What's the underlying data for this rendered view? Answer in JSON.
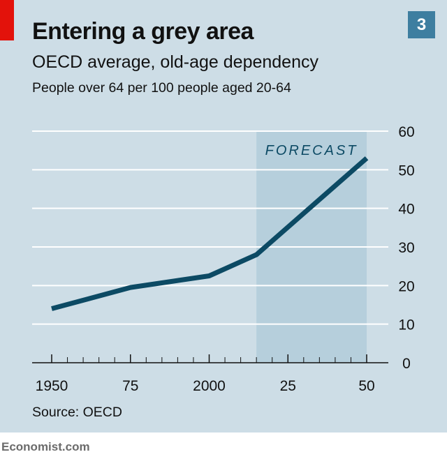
{
  "header": {
    "title": "Entering a grey area",
    "subtitle": "OECD average, old-age dependency",
    "unit": "People over 64 per 100 people aged 20-64",
    "chart_number": "3"
  },
  "footer": {
    "source": "Source: OECD",
    "brand": "Economist.com"
  },
  "colors": {
    "background": "#cddde6",
    "line": "#0c4a64",
    "forecast_band": "#b6cfdc",
    "forecast_label": "#0c4a64",
    "gridline": "#ffffff",
    "accent_red": "#e3120b",
    "badge": "#3e7ea0"
  },
  "chart_data": {
    "type": "line",
    "title": "Entering a grey area",
    "subtitle": "OECD average, old-age dependency",
    "ylabel": "People over 64 per 100 people aged 20-64",
    "xlabel": "",
    "x_range": [
      1950,
      2050
    ],
    "ylim": [
      0,
      60
    ],
    "y_ticks": [
      0,
      10,
      20,
      30,
      40,
      50,
      60
    ],
    "x_tick_labels": [
      {
        "year": 1950,
        "label": "1950"
      },
      {
        "year": 1975,
        "label": "75"
      },
      {
        "year": 2000,
        "label": "2000"
      },
      {
        "year": 2025,
        "label": "25"
      },
      {
        "year": 2050,
        "label": "50"
      }
    ],
    "grid": true,
    "y_axis_side": "right",
    "forecast": {
      "label": "FORECAST",
      "from": 2015,
      "to": 2050
    },
    "series": [
      {
        "x": [
          1950,
          1975,
          2000,
          2015,
          2050
        ],
        "y": [
          14,
          19.5,
          22.5,
          28,
          53
        ]
      }
    ]
  }
}
